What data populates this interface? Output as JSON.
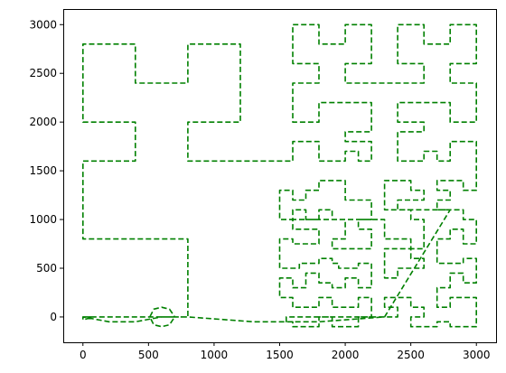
{
  "chart_data": {
    "type": "line",
    "title": "",
    "xlabel": "",
    "ylabel": "",
    "xlim": [
      -150,
      3150
    ],
    "ylim": [
      -260,
      3160
    ],
    "xticks": [
      0,
      500,
      1000,
      1500,
      2000,
      2500,
      3000
    ],
    "yticks": [
      0,
      500,
      1000,
      1500,
      2000,
      2500,
      3000
    ],
    "xtick_labels": [
      "0",
      "500",
      "1000",
      "1500",
      "2000",
      "2500",
      "3000"
    ],
    "ytick_labels": [
      "0",
      "500",
      "1000",
      "1500",
      "2000",
      "2500",
      "3000"
    ],
    "grid": false,
    "legend": "none",
    "series": [
      {
        "color": "#008000",
        "linestyle": "dashed",
        "points": [
          [
            0,
            0
          ],
          [
            800,
            0
          ],
          [
            800,
            800
          ],
          [
            0,
            800
          ],
          [
            0,
            1600
          ],
          [
            400,
            1600
          ],
          [
            400,
            2000
          ],
          [
            0,
            2000
          ],
          [
            0,
            2800
          ],
          [
            400,
            2800
          ],
          [
            400,
            2400
          ],
          [
            800,
            2400
          ],
          [
            800,
            2800
          ],
          [
            1200,
            2800
          ],
          [
            1200,
            2000
          ],
          [
            800,
            2000
          ],
          [
            800,
            1600
          ],
          [
            1600,
            1600
          ],
          [
            1600,
            1800
          ],
          [
            1800,
            1800
          ],
          [
            1800,
            1600
          ],
          [
            2000,
            1600
          ],
          [
            2000,
            1700
          ],
          [
            2100,
            1700
          ],
          [
            2100,
            1600
          ],
          [
            2200,
            1600
          ],
          [
            2200,
            1800
          ],
          [
            2000,
            1800
          ],
          [
            2000,
            1900
          ],
          [
            2200,
            1900
          ],
          [
            2200,
            2200
          ],
          [
            1800,
            2200
          ],
          [
            1800,
            2000
          ],
          [
            1600,
            2000
          ],
          [
            1600,
            2400
          ],
          [
            1800,
            2400
          ],
          [
            1800,
            2600
          ],
          [
            1600,
            2600
          ],
          [
            1600,
            3000
          ],
          [
            1800,
            3000
          ],
          [
            1800,
            2800
          ],
          [
            2000,
            2800
          ],
          [
            2000,
            3000
          ],
          [
            2200,
            3000
          ],
          [
            2200,
            2600
          ],
          [
            2000,
            2600
          ],
          [
            2000,
            2400
          ],
          [
            2600,
            2400
          ],
          [
            2600,
            2600
          ],
          [
            2400,
            2600
          ],
          [
            2400,
            3000
          ],
          [
            2600,
            3000
          ],
          [
            2600,
            2800
          ],
          [
            2800,
            2800
          ],
          [
            2800,
            3000
          ],
          [
            3000,
            3000
          ],
          [
            3000,
            2600
          ],
          [
            2800,
            2600
          ],
          [
            2800,
            2400
          ],
          [
            3000,
            2400
          ],
          [
            3000,
            2000
          ],
          [
            2800,
            2000
          ],
          [
            2800,
            2200
          ],
          [
            2400,
            2200
          ],
          [
            2400,
            2000
          ],
          [
            2600,
            2000
          ],
          [
            2600,
            1900
          ],
          [
            2400,
            1900
          ],
          [
            2400,
            1600
          ],
          [
            2600,
            1600
          ],
          [
            2600,
            1700
          ],
          [
            2700,
            1700
          ],
          [
            2700,
            1600
          ],
          [
            2800,
            1600
          ],
          [
            2800,
            1800
          ],
          [
            3000,
            1800
          ],
          [
            3000,
            1300
          ],
          [
            2900,
            1300
          ],
          [
            2900,
            1400
          ],
          [
            2700,
            1400
          ],
          [
            2700,
            1300
          ],
          [
            2800,
            1300
          ],
          [
            2800,
            1200
          ],
          [
            2700,
            1200
          ],
          [
            2700,
            1100
          ],
          [
            2900,
            1100
          ],
          [
            2900,
            1000
          ],
          [
            3000,
            1000
          ],
          [
            3000,
            750
          ],
          [
            2900,
            750
          ],
          [
            2900,
            900
          ],
          [
            2800,
            900
          ],
          [
            2800,
            800
          ],
          [
            2700,
            800
          ],
          [
            2700,
            550
          ],
          [
            2900,
            550
          ],
          [
            2900,
            600
          ],
          [
            3000,
            600
          ],
          [
            3000,
            350
          ],
          [
            2900,
            350
          ],
          [
            2900,
            450
          ],
          [
            2800,
            450
          ],
          [
            2800,
            300
          ],
          [
            2700,
            300
          ],
          [
            2700,
            100
          ],
          [
            2800,
            100
          ],
          [
            2800,
            200
          ],
          [
            3000,
            200
          ],
          [
            3000,
            -100
          ],
          [
            2800,
            -100
          ],
          [
            2800,
            -50
          ],
          [
            2700,
            -50
          ],
          [
            2700,
            -100
          ],
          [
            2500,
            -100
          ],
          [
            2500,
            0
          ],
          [
            2600,
            0
          ],
          [
            2600,
            100
          ],
          [
            2500,
            100
          ],
          [
            2500,
            200
          ],
          [
            2300,
            200
          ],
          [
            2300,
            100
          ],
          [
            2400,
            100
          ],
          [
            2400,
            0
          ],
          [
            2300,
            0
          ],
          [
            1550,
            0
          ],
          [
            1550,
            -50
          ],
          [
            1600,
            -50
          ],
          [
            1600,
            -100
          ],
          [
            1800,
            -100
          ],
          [
            1800,
            0
          ],
          [
            1900,
            0
          ],
          [
            1900,
            -100
          ],
          [
            2100,
            -100
          ],
          [
            2100,
            0
          ],
          [
            2200,
            0
          ],
          [
            2200,
            200
          ],
          [
            2100,
            200
          ],
          [
            2100,
            100
          ],
          [
            1900,
            100
          ],
          [
            1900,
            200
          ],
          [
            1800,
            200
          ],
          [
            1800,
            100
          ],
          [
            1600,
            100
          ],
          [
            1600,
            200
          ],
          [
            1500,
            200
          ],
          [
            1500,
            400
          ],
          [
            1600,
            400
          ],
          [
            1600,
            300
          ],
          [
            1700,
            300
          ],
          [
            1700,
            450
          ],
          [
            1800,
            450
          ],
          [
            1800,
            350
          ],
          [
            1900,
            350
          ],
          [
            1900,
            300
          ],
          [
            2000,
            300
          ],
          [
            2000,
            400
          ],
          [
            2100,
            400
          ],
          [
            2100,
            300
          ],
          [
            2200,
            300
          ],
          [
            2200,
            550
          ],
          [
            2100,
            550
          ],
          [
            2100,
            500
          ],
          [
            1950,
            500
          ],
          [
            1950,
            550
          ],
          [
            1900,
            550
          ],
          [
            1900,
            600
          ],
          [
            1800,
            600
          ],
          [
            1800,
            550
          ],
          [
            1650,
            550
          ],
          [
            1650,
            500
          ],
          [
            1500,
            500
          ],
          [
            1500,
            800
          ],
          [
            1600,
            800
          ],
          [
            1600,
            750
          ],
          [
            1800,
            750
          ],
          [
            1800,
            900
          ],
          [
            1600,
            900
          ],
          [
            1600,
            1000
          ],
          [
            1500,
            1000
          ],
          [
            1500,
            1300
          ],
          [
            1600,
            1300
          ],
          [
            1600,
            1200
          ],
          [
            1700,
            1200
          ],
          [
            1700,
            1300
          ],
          [
            1800,
            1300
          ],
          [
            1800,
            1400
          ],
          [
            2000,
            1400
          ],
          [
            2000,
            1200
          ],
          [
            2200,
            1200
          ],
          [
            2200,
            1000
          ],
          [
            2100,
            1000
          ],
          [
            2100,
            900
          ],
          [
            2200,
            900
          ],
          [
            2200,
            700
          ],
          [
            1900,
            700
          ],
          [
            1900,
            800
          ],
          [
            2000,
            800
          ],
          [
            2000,
            1000
          ],
          [
            1900,
            1000
          ],
          [
            1900,
            1100
          ],
          [
            1800,
            1100
          ],
          [
            1800,
            1000
          ],
          [
            1700,
            1000
          ],
          [
            1700,
            1100
          ],
          [
            1600,
            1100
          ],
          [
            1600,
            1000
          ],
          [
            2300,
            1000
          ],
          [
            2300,
            800
          ],
          [
            2500,
            800
          ],
          [
            2500,
            700
          ],
          [
            2300,
            700
          ],
          [
            2300,
            400
          ],
          [
            2400,
            400
          ],
          [
            2400,
            500
          ],
          [
            2600,
            500
          ],
          [
            2600,
            600
          ],
          [
            2500,
            600
          ],
          [
            2500,
            700
          ],
          [
            2600,
            700
          ],
          [
            2600,
            1000
          ],
          [
            2500,
            1000
          ],
          [
            2500,
            1100
          ],
          [
            2300,
            1100
          ],
          [
            2300,
            1400
          ],
          [
            2500,
            1400
          ],
          [
            2500,
            1300
          ],
          [
            2600,
            1300
          ],
          [
            2600,
            1200
          ],
          [
            2400,
            1200
          ],
          [
            2400,
            1100
          ],
          [
            2800,
            1100
          ],
          [
            2300,
            0
          ],
          [
            1800,
            -50
          ],
          [
            1300,
            -50
          ],
          [
            800,
            0
          ],
          [
            700,
            0
          ],
          [
            660,
            80
          ],
          [
            600,
            100
          ],
          [
            540,
            80
          ],
          [
            510,
            0
          ],
          [
            540,
            -80
          ],
          [
            600,
            -100
          ],
          [
            660,
            -80
          ],
          [
            700,
            0
          ],
          [
            600,
            0
          ],
          [
            400,
            -50
          ],
          [
            200,
            -50
          ],
          [
            0,
            0
          ],
          [
            0,
            -30
          ],
          [
            80,
            0
          ],
          [
            0,
            0
          ]
        ]
      }
    ]
  }
}
